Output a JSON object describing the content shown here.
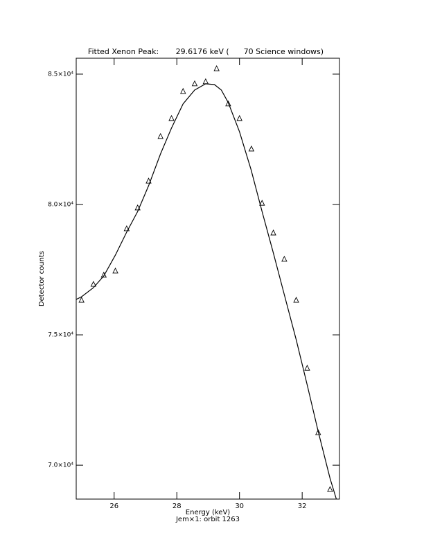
{
  "chart_data": {
    "type": "scatter",
    "title": "Fitted Xenon Peak:       29.6176 keV (      70 Science windows)",
    "x_label": "Energy (keV)",
    "subtitle": "Jem×1: orbit 1263",
    "y_label": "Detector counts",
    "xlim": [
      24.79,
      33.19
    ],
    "ylim": [
      68700,
      85610
    ],
    "xticks": [
      26,
      28,
      30,
      32
    ],
    "yticks": [
      {
        "value": 70000,
        "label": "7.0×10⁴"
      },
      {
        "value": 75000,
        "label": "7.5×10⁴"
      },
      {
        "value": 80000,
        "label": "8.0×10⁴"
      },
      {
        "value": 85000,
        "label": "8.5×10⁴"
      }
    ],
    "color": "#000000",
    "points": {
      "x": [
        24.96,
        25.34,
        25.67,
        26.04,
        26.4,
        26.75,
        27.1,
        27.48,
        27.83,
        28.2,
        28.57,
        28.92,
        29.27,
        29.64,
        30.0,
        30.38,
        30.72,
        31.08,
        31.43,
        31.81,
        32.16,
        32.51,
        32.89
      ],
      "y": [
        76330,
        76940,
        77290,
        77450,
        79070,
        79870,
        80900,
        82610,
        83300,
        84340,
        84630,
        84710,
        85210,
        83860,
        83300,
        82130,
        80050,
        78910,
        77900,
        76330,
        73720,
        71250,
        69070
      ]
    },
    "fit": {
      "x": [
        24.79,
        24.96,
        25.34,
        25.67,
        26.04,
        26.4,
        26.75,
        27.1,
        27.48,
        27.83,
        28.2,
        28.57,
        28.92,
        29.2,
        29.42,
        29.64,
        30.0,
        30.37,
        30.72,
        31.08,
        31.43,
        31.81,
        32.16,
        32.51,
        32.89,
        33.09
      ],
      "y": [
        76360,
        76460,
        76810,
        77260,
        78060,
        78940,
        79730,
        80720,
        81940,
        82930,
        83860,
        84390,
        84630,
        84600,
        84390,
        83910,
        82790,
        81330,
        79730,
        78140,
        76540,
        74810,
        73080,
        71300,
        69490,
        68700
      ]
    }
  }
}
